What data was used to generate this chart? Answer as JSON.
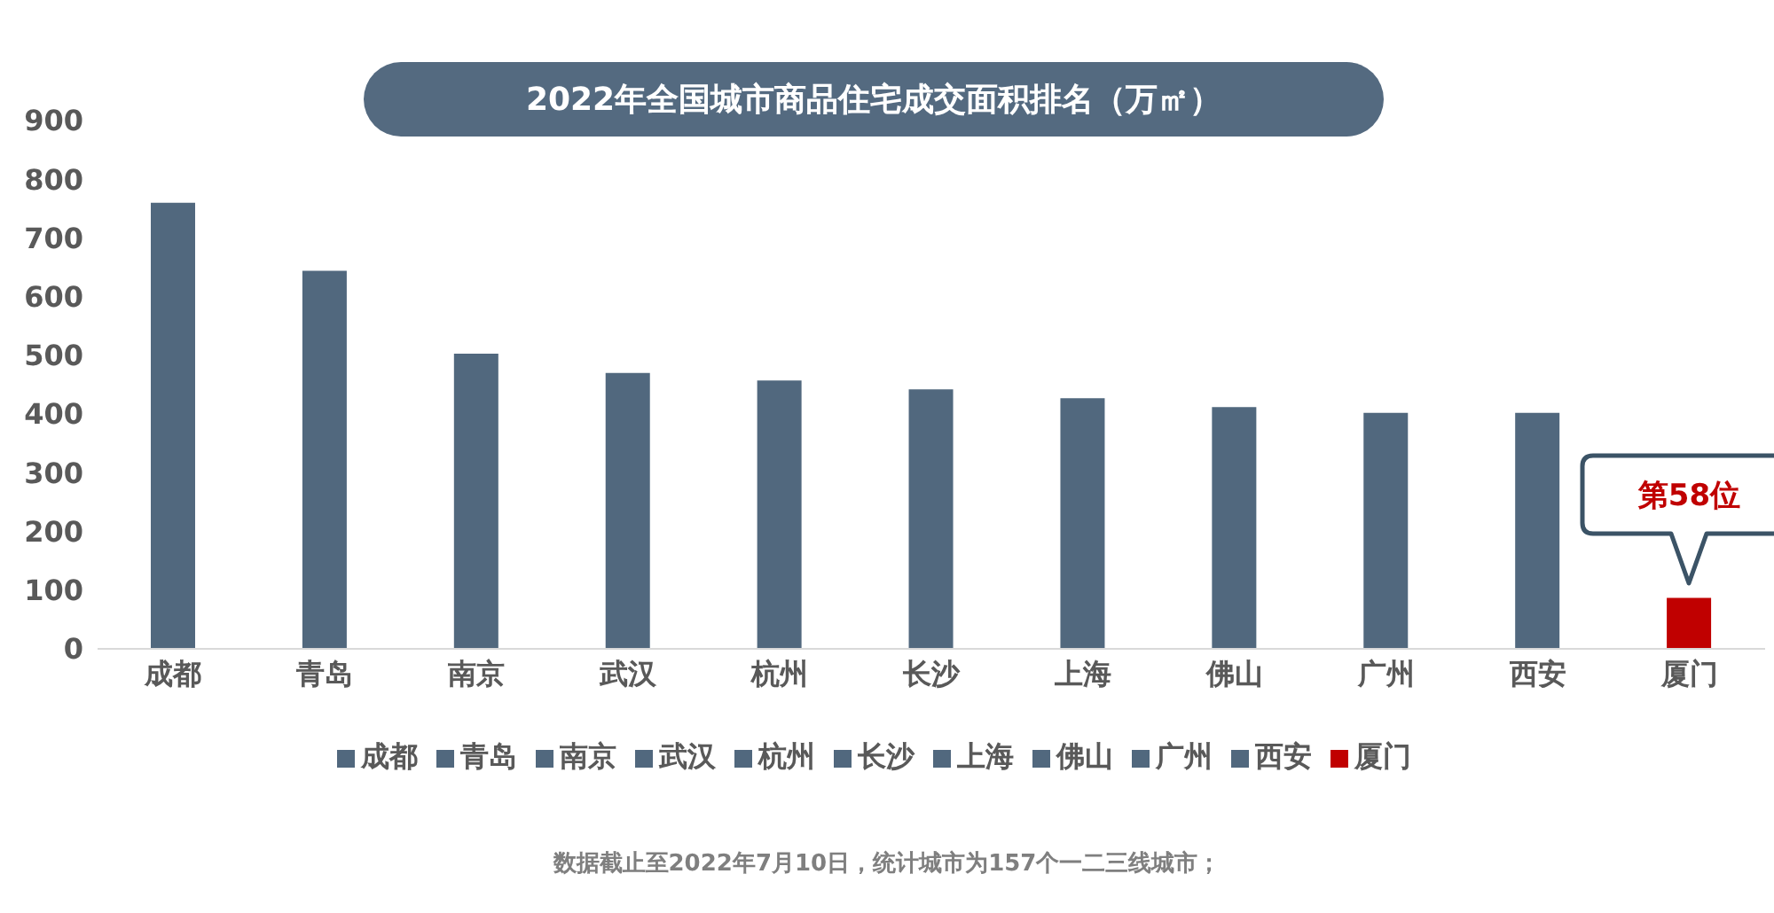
{
  "chart_data": {
    "type": "bar",
    "title": "2022年全国城市商品住宅成交面积排名（万㎡）",
    "categories": [
      "成都",
      "青岛",
      "南京",
      "武汉",
      "杭州",
      "长沙",
      "上海",
      "佛山",
      "广州",
      "西安",
      "厦门"
    ],
    "stacked": true,
    "series": [
      {
        "name": "成都",
        "color": "#51687e",
        "values": [
          760,
          null,
          null,
          null,
          null,
          null,
          null,
          null,
          null,
          null,
          null
        ]
      },
      {
        "name": "青岛",
        "color": "#51687e",
        "values": [
          null,
          644,
          null,
          null,
          null,
          null,
          null,
          null,
          null,
          null,
          null
        ]
      },
      {
        "name": "南京",
        "color": "#51687e",
        "values": [
          null,
          null,
          503,
          null,
          null,
          null,
          null,
          null,
          null,
          null,
          null
        ]
      },
      {
        "name": "武汉",
        "color": "#51687e",
        "values": [
          null,
          null,
          null,
          470,
          null,
          null,
          null,
          null,
          null,
          null,
          null
        ]
      },
      {
        "name": "杭州",
        "color": "#51687e",
        "values": [
          null,
          null,
          null,
          null,
          457,
          null,
          null,
          null,
          null,
          null,
          null
        ]
      },
      {
        "name": "长沙",
        "color": "#51687e",
        "values": [
          null,
          null,
          null,
          null,
          null,
          442,
          null,
          null,
          null,
          null,
          null
        ]
      },
      {
        "name": "上海",
        "color": "#51687e",
        "values": [
          null,
          null,
          null,
          null,
          null,
          null,
          427,
          null,
          null,
          null,
          null
        ]
      },
      {
        "name": "佛山",
        "color": "#51687e",
        "values": [
          null,
          null,
          null,
          null,
          null,
          null,
          null,
          412,
          null,
          null,
          null
        ]
      },
      {
        "name": "广州",
        "color": "#51687e",
        "values": [
          null,
          null,
          null,
          null,
          null,
          null,
          null,
          null,
          402,
          null,
          null
        ]
      },
      {
        "name": "西安",
        "color": "#51687e",
        "values": [
          null,
          null,
          null,
          null,
          null,
          null,
          null,
          null,
          null,
          402,
          null
        ]
      },
      {
        "name": "厦门",
        "color": "#c00000",
        "values": [
          null,
          null,
          null,
          null,
          null,
          null,
          null,
          null,
          null,
          null,
          87
        ]
      }
    ],
    "ylim": [
      0,
      900
    ],
    "yticks": [
      0,
      100,
      200,
      300,
      400,
      500,
      600,
      700,
      800,
      900
    ],
    "grid": false,
    "legend": "bottom",
    "annotations": [
      {
        "text": "第58位",
        "x": "厦门",
        "y": 87
      },
      "数据截止至2022年7月10日，统计城市为157个一二三线城市；"
    ]
  }
}
